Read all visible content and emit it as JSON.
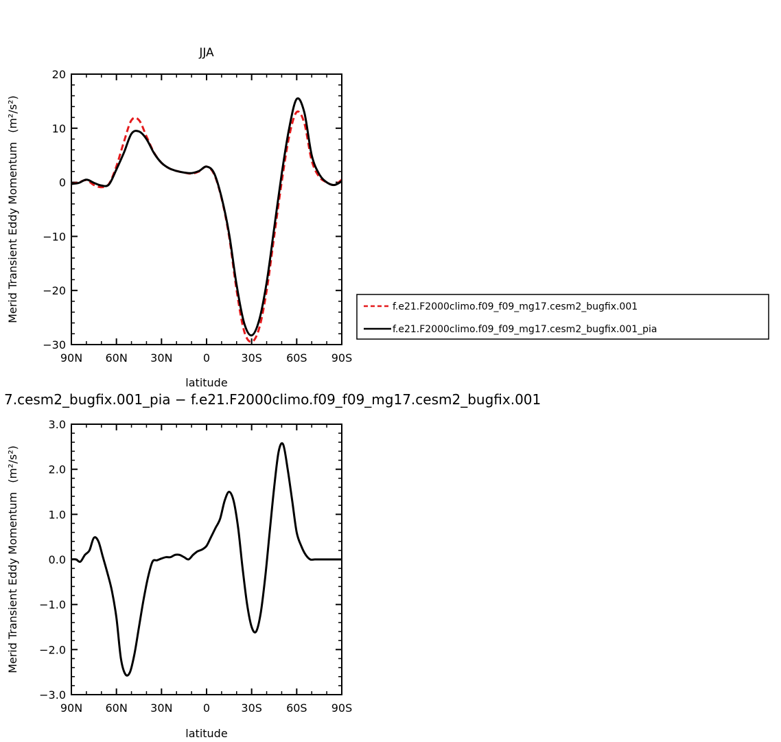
{
  "chart_data": [
    {
      "type": "line",
      "title": "JJA",
      "xlabel": "latitude",
      "ylabel": "Merid Transient Eddy Momentum",
      "yunits": "(m²/s²)",
      "x_ticks": [
        90,
        60,
        30,
        0,
        -30,
        -60,
        -90
      ],
      "x_tick_labels": [
        "90N",
        "60N",
        "30N",
        "0",
        "30S",
        "60S",
        "90S"
      ],
      "xlim": [
        90,
        -90
      ],
      "ylim": [
        -30,
        20
      ],
      "y_ticks": [
        20,
        10,
        0,
        -10,
        -20,
        -30
      ],
      "y_tick_labels": [
        "20",
        "10",
        "0",
        "−10",
        "−20",
        "−30"
      ],
      "grid": false,
      "legend_position": "right",
      "series": [
        {
          "name": "f.e21.F2000climo.f09_f09_mg17.cesm2_bugfix.001",
          "color": "#e41a1c",
          "dash": true,
          "x": [
            90,
            85,
            80,
            75,
            70,
            65,
            60,
            55,
            50,
            45,
            40,
            35,
            30,
            25,
            20,
            15,
            10,
            5,
            0,
            -5,
            -10,
            -15,
            -20,
            -25,
            -30,
            -35,
            -40,
            -45,
            -50,
            -55,
            -60,
            -65,
            -70,
            -75,
            -80,
            -85,
            -90
          ],
          "values": [
            -0.3,
            0.0,
            0.4,
            -0.5,
            -0.9,
            -0.3,
            3.0,
            7.5,
            11.5,
            11.5,
            8.5,
            5.5,
            3.6,
            2.6,
            2.1,
            1.8,
            1.6,
            2.0,
            2.9,
            1.5,
            -3.0,
            -10.0,
            -20.0,
            -27.5,
            -29.5,
            -27.0,
            -20.0,
            -10.0,
            0.0,
            8.5,
            13.0,
            11.0,
            4.0,
            1.0,
            0.0,
            -0.5,
            0.5
          ]
        },
        {
          "name": "f.e21.F2000climo.f09_f09_mg17.cesm2_bugfix.001_pia",
          "color": "#000000",
          "dash": false,
          "x": [
            90,
            85,
            80,
            75,
            70,
            65,
            60,
            55,
            50,
            45,
            40,
            35,
            30,
            25,
            20,
            15,
            10,
            5,
            0,
            -5,
            -10,
            -15,
            -20,
            -25,
            -30,
            -35,
            -40,
            -45,
            -50,
            -55,
            -60,
            -65,
            -70,
            -75,
            -80,
            -85,
            -90
          ],
          "values": [
            -0.3,
            -0.1,
            0.5,
            -0.1,
            -0.6,
            -0.4,
            2.4,
            5.5,
            9.0,
            9.4,
            8.0,
            5.4,
            3.6,
            2.6,
            2.1,
            1.8,
            1.7,
            2.1,
            2.9,
            1.7,
            -2.8,
            -9.5,
            -19.0,
            -26.0,
            -28.3,
            -25.5,
            -18.5,
            -8.5,
            1.5,
            10.0,
            15.4,
            13.0,
            5.0,
            1.5,
            0.0,
            -0.5,
            0.2
          ]
        }
      ]
    },
    {
      "type": "line",
      "title": "7.cesm2_bugfix.001_pia − f.e21.F2000climo.f09_f09_mg17.cesm2_bugfix.001",
      "xlabel": "latitude",
      "ylabel": "Merid Transient Eddy Momentum",
      "yunits": "(m²/s²)",
      "x_ticks": [
        90,
        60,
        30,
        0,
        -30,
        -60,
        -90
      ],
      "x_tick_labels": [
        "90N",
        "60N",
        "30N",
        "0",
        "30S",
        "60S",
        "90S"
      ],
      "xlim": [
        90,
        -90
      ],
      "ylim": [
        -3,
        3
      ],
      "y_ticks": [
        3,
        2,
        1,
        0,
        -1,
        -2,
        -3
      ],
      "y_tick_labels": [
        "3.0",
        "2.0",
        "1.0",
        "0.0",
        "−1.0",
        "−2.0",
        "−3.0"
      ],
      "grid": false,
      "series": [
        {
          "color": "#000000",
          "x": [
            90,
            87,
            84,
            81,
            78,
            75,
            72,
            69,
            66,
            63,
            60,
            57,
            54,
            51,
            48,
            45,
            42,
            39,
            36,
            33,
            30,
            27,
            24,
            21,
            18,
            15,
            12,
            9,
            6,
            3,
            0,
            -3,
            -6,
            -9,
            -12,
            -15,
            -18,
            -21,
            -24,
            -27,
            -30,
            -33,
            -36,
            -39,
            -42,
            -45,
            -48,
            -51,
            -54,
            -57,
            -60,
            -63,
            -66,
            -69,
            -72,
            -75,
            -78,
            -81,
            -84,
            -87,
            -90
          ],
          "values": [
            0.0,
            0.0,
            -0.05,
            0.1,
            0.2,
            0.48,
            0.4,
            0.05,
            -0.3,
            -0.7,
            -1.3,
            -2.2,
            -2.55,
            -2.5,
            -2.1,
            -1.5,
            -0.9,
            -0.4,
            -0.05,
            -0.02,
            0.02,
            0.05,
            0.05,
            0.1,
            0.1,
            0.05,
            0.0,
            0.1,
            0.18,
            0.22,
            0.3,
            0.5,
            0.7,
            0.9,
            1.3,
            1.5,
            1.3,
            0.7,
            -0.2,
            -1.0,
            -1.5,
            -1.6,
            -1.2,
            -0.4,
            0.6,
            1.6,
            2.4,
            2.55,
            2.0,
            1.3,
            0.6,
            0.3,
            0.1,
            0.0,
            0.0,
            0.0,
            0.0,
            0.0,
            0.0,
            0.0,
            0.0
          ]
        }
      ]
    }
  ]
}
